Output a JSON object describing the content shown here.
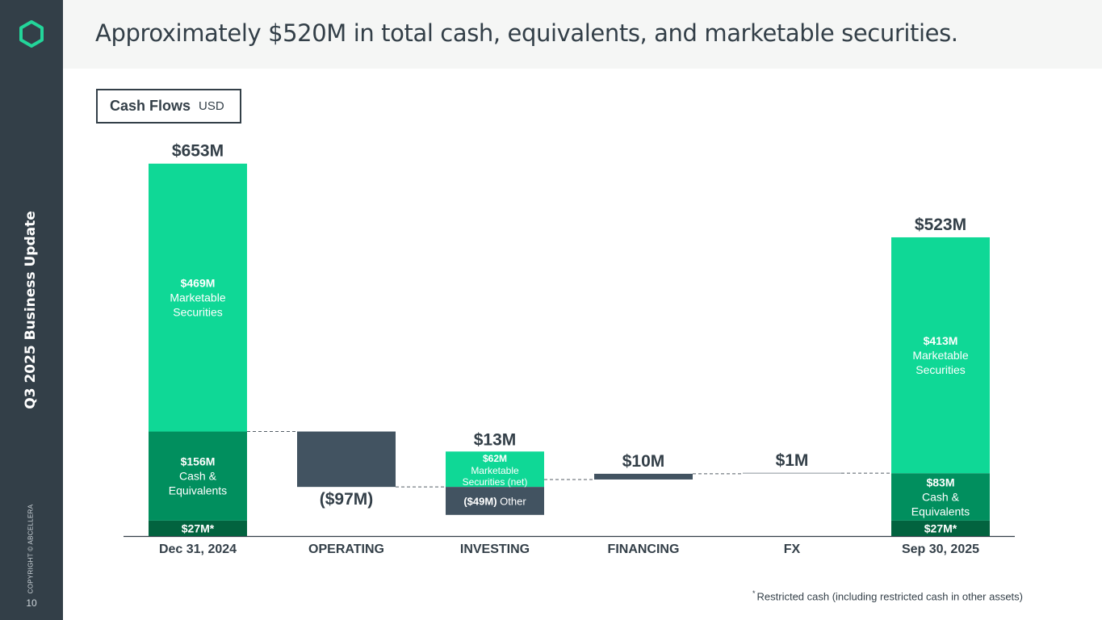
{
  "sidebar": {
    "deck_title": "Q3 2025 Business Update",
    "copyright": "COPYRIGHT © ABCELLERA",
    "page_number": "10"
  },
  "header": {
    "headline": "Approximately $520M in total cash, equivalents, and marketable securities."
  },
  "chart_title": {
    "title": "Cash Flows",
    "unit": "USD"
  },
  "footnote": {
    "marker": "*",
    "text": "Restricted cash (including restricted cash in other assets)"
  },
  "colors": {
    "marketable": "#0fd896",
    "cash": "#018f5e",
    "restricted": "#02633f",
    "negative": "#425361",
    "text_dark": "#333f48",
    "sidebar": "#333f48",
    "accent": "#23d59a"
  },
  "chart_data": {
    "type": "waterfall",
    "title": "Cash Flows",
    "unit": "USD millions",
    "ylim": [
      0,
      653
    ],
    "categories": [
      "Dec 31, 2024",
      "OPERATING",
      "INVESTING",
      "FINANCING",
      "FX",
      "Sep 30, 2025"
    ],
    "bars": [
      {
        "category": "Dec 31, 2024",
        "kind": "total",
        "total_label": "$653M",
        "segments": [
          {
            "name": "restricted",
            "value": 27,
            "label_bold": "$27M*",
            "label_lines": []
          },
          {
            "name": "cash",
            "value": 156,
            "label_bold": "$156M",
            "label_lines": [
              "Cash &",
              "Equivalents"
            ]
          },
          {
            "name": "marketable",
            "value": 469,
            "label_bold": "$469M",
            "label_lines": [
              "Marketable",
              "Securities"
            ]
          }
        ]
      },
      {
        "category": "OPERATING",
        "kind": "delta",
        "value": -97,
        "label": "($97M)"
      },
      {
        "category": "INVESTING",
        "kind": "delta",
        "value": 13,
        "label": "$13M",
        "segments": [
          {
            "name": "marketable",
            "value": 62,
            "label_bold": "$62M",
            "label_lines": [
              "Marketable",
              "Securities (net)"
            ]
          },
          {
            "name": "other",
            "value": -49,
            "label_bold": "($49M)",
            "label_rest": " Other"
          }
        ]
      },
      {
        "category": "FINANCING",
        "kind": "delta",
        "value": 10,
        "label": "$10M"
      },
      {
        "category": "FX",
        "kind": "delta",
        "value": 1,
        "label": "$1M"
      },
      {
        "category": "Sep 30, 2025",
        "kind": "total",
        "total_label": "$523M",
        "segments": [
          {
            "name": "restricted",
            "value": 27,
            "label_bold": "$27M*",
            "label_lines": []
          },
          {
            "name": "cash",
            "value": 83,
            "label_bold": "$83M",
            "label_lines": [
              "Cash &",
              "Equivalents"
            ]
          },
          {
            "name": "marketable",
            "value": 413,
            "label_bold": "$413M",
            "label_lines": [
              "Marketable",
              "Securities"
            ]
          }
        ]
      }
    ]
  }
}
